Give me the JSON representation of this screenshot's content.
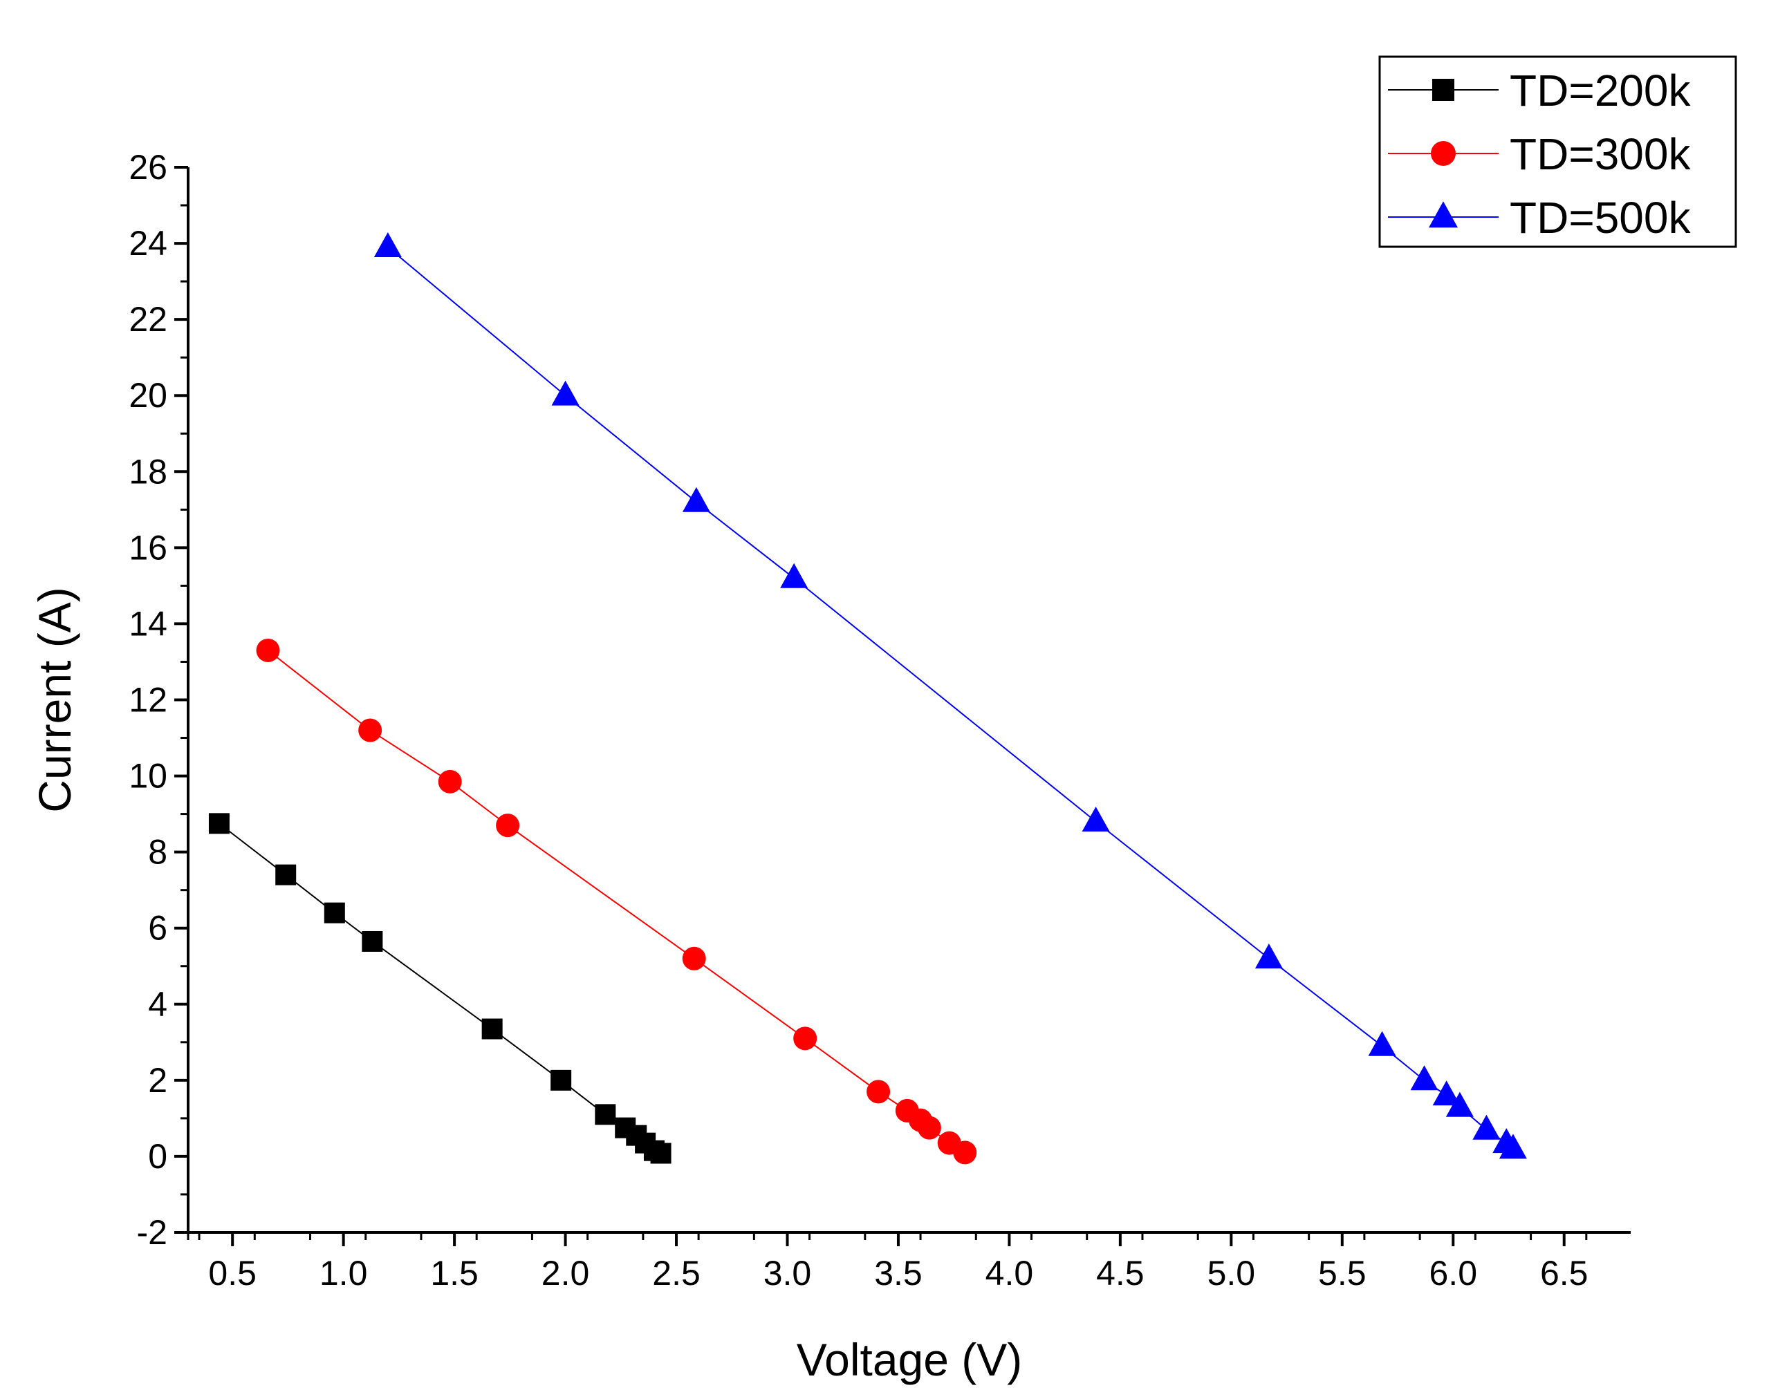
{
  "chart_data": {
    "type": "scatter",
    "title": "",
    "xlabel": "Voltage (V)",
    "ylabel": "Current (A)",
    "xlim": [
      0.3,
      6.8
    ],
    "ylim": [
      -2,
      26
    ],
    "x_ticks": [
      "0.5",
      "1.0",
      "1.5",
      "2.0",
      "2.5",
      "3.0",
      "3.5",
      "4.0",
      "4.5",
      "5.0",
      "5.5",
      "6.0",
      "6.5"
    ],
    "y_ticks": [
      "-2",
      "0",
      "2",
      "4",
      "6",
      "8",
      "10",
      "12",
      "14",
      "16",
      "18",
      "20",
      "22",
      "24",
      "26"
    ],
    "grid": false,
    "legend_position": "top-right",
    "series": [
      {
        "name": "TD=200k",
        "color": "#000000",
        "marker": "square",
        "x": [
          0.44,
          0.74,
          0.96,
          1.13,
          1.67,
          1.98,
          2.18,
          2.27,
          2.32,
          2.36,
          2.4,
          2.43
        ],
        "y": [
          8.75,
          7.4,
          6.4,
          5.65,
          3.35,
          2.0,
          1.1,
          0.75,
          0.55,
          0.35,
          0.15,
          0.08
        ]
      },
      {
        "name": "TD=300k",
        "color": "#ff0000",
        "marker": "circle",
        "x": [
          0.66,
          1.12,
          1.48,
          1.74,
          2.58,
          3.08,
          3.41,
          3.54,
          3.6,
          3.64,
          3.73,
          3.8
        ],
        "y": [
          13.3,
          11.2,
          9.85,
          8.7,
          5.2,
          3.1,
          1.7,
          1.2,
          0.95,
          0.75,
          0.35,
          0.1
        ]
      },
      {
        "name": "TD=500k",
        "color": "#0000ff",
        "marker": "triangle",
        "x": [
          1.2,
          2.0,
          2.59,
          3.03,
          4.39,
          5.17,
          5.68,
          5.87,
          5.97,
          6.03,
          6.15,
          6.24,
          6.27
        ],
        "y": [
          23.9,
          20.0,
          17.2,
          15.2,
          8.8,
          5.2,
          2.9,
          2.0,
          1.6,
          1.3,
          0.7,
          0.35,
          0.2
        ]
      }
    ]
  }
}
